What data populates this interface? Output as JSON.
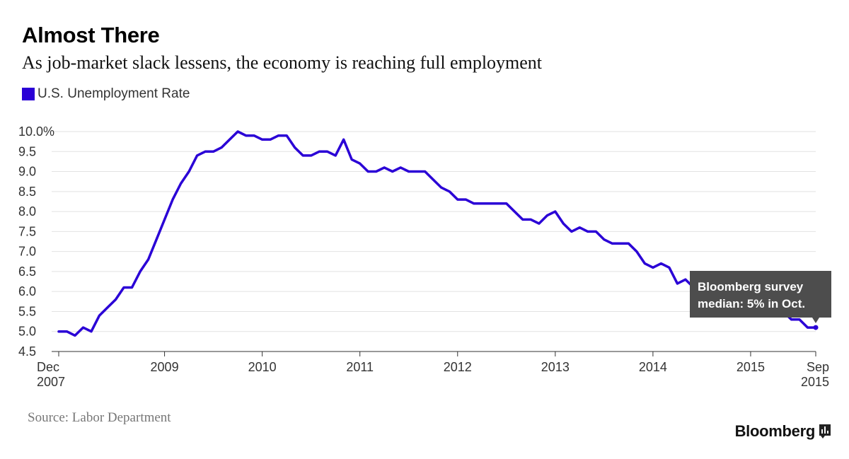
{
  "header": {
    "title": "Almost There",
    "subtitle": "As job-market slack lessens, the economy is reaching full employment"
  },
  "footer": {
    "source": "Source: Labor Department",
    "brand": "Bloomberg"
  },
  "colors": {
    "series": "#2a00d6",
    "annotation_bg": "#4d4d4d",
    "grid": "#e2e2e2"
  },
  "chart_data": {
    "type": "line",
    "grid": true,
    "legend_position": "top-left",
    "ylim": [
      4.5,
      10.0
    ],
    "yticks": [
      {
        "value": 10.0,
        "label": "10.0%"
      },
      {
        "value": 9.5,
        "label": "9.5"
      },
      {
        "value": 9.0,
        "label": "9.0"
      },
      {
        "value": 8.5,
        "label": "8.5"
      },
      {
        "value": 8.0,
        "label": "8.0"
      },
      {
        "value": 7.5,
        "label": "7.5"
      },
      {
        "value": 7.0,
        "label": "7.0"
      },
      {
        "value": 6.5,
        "label": "6.5"
      },
      {
        "value": 6.0,
        "label": "6.0"
      },
      {
        "value": 5.5,
        "label": "5.5"
      },
      {
        "value": 5.0,
        "label": "5.0"
      },
      {
        "value": 4.5,
        "label": "4.5"
      }
    ],
    "xlim": [
      "2007-12",
      "2015-09"
    ],
    "xticks": [
      {
        "date": "2007-12",
        "label": "Dec",
        "label2": "2007"
      },
      {
        "date": "2009-01",
        "label": "2009"
      },
      {
        "date": "2010-01",
        "label": "2010"
      },
      {
        "date": "2011-01",
        "label": "2011"
      },
      {
        "date": "2012-01",
        "label": "2012"
      },
      {
        "date": "2013-01",
        "label": "2013"
      },
      {
        "date": "2014-01",
        "label": "2014"
      },
      {
        "date": "2015-01",
        "label": "2015"
      },
      {
        "date": "2015-09",
        "label": "Sep",
        "label2": "2015"
      }
    ],
    "series": [
      {
        "name": "U.S. Unemployment Rate",
        "x": [
          "2007-12",
          "2008-01",
          "2008-02",
          "2008-03",
          "2008-04",
          "2008-05",
          "2008-06",
          "2008-07",
          "2008-08",
          "2008-09",
          "2008-10",
          "2008-11",
          "2008-12",
          "2009-01",
          "2009-02",
          "2009-03",
          "2009-04",
          "2009-05",
          "2009-06",
          "2009-07",
          "2009-08",
          "2009-09",
          "2009-10",
          "2009-11",
          "2009-12",
          "2010-01",
          "2010-02",
          "2010-03",
          "2010-04",
          "2010-05",
          "2010-06",
          "2010-07",
          "2010-08",
          "2010-09",
          "2010-10",
          "2010-11",
          "2010-12",
          "2011-01",
          "2011-02",
          "2011-03",
          "2011-04",
          "2011-05",
          "2011-06",
          "2011-07",
          "2011-08",
          "2011-09",
          "2011-10",
          "2011-11",
          "2011-12",
          "2012-01",
          "2012-02",
          "2012-03",
          "2012-04",
          "2012-05",
          "2012-06",
          "2012-07",
          "2012-08",
          "2012-09",
          "2012-10",
          "2012-11",
          "2012-12",
          "2013-01",
          "2013-02",
          "2013-03",
          "2013-04",
          "2013-05",
          "2013-06",
          "2013-07",
          "2013-08",
          "2013-09",
          "2013-10",
          "2013-11",
          "2013-12",
          "2014-01",
          "2014-02",
          "2014-03",
          "2014-04",
          "2014-05",
          "2014-06",
          "2014-07",
          "2014-08",
          "2014-09",
          "2014-10",
          "2014-11",
          "2014-12",
          "2015-01",
          "2015-02",
          "2015-03",
          "2015-04",
          "2015-05",
          "2015-06",
          "2015-07",
          "2015-08",
          "2015-09"
        ],
        "y": [
          5.0,
          5.0,
          4.9,
          5.1,
          5.0,
          5.4,
          5.6,
          5.8,
          6.1,
          6.1,
          6.5,
          6.8,
          7.3,
          7.8,
          8.3,
          8.7,
          9.0,
          9.4,
          9.5,
          9.5,
          9.6,
          9.8,
          10.0,
          9.9,
          9.9,
          9.8,
          9.8,
          9.9,
          9.9,
          9.6,
          9.4,
          9.4,
          9.5,
          9.5,
          9.4,
          9.8,
          9.3,
          9.2,
          9.0,
          9.0,
          9.1,
          9.0,
          9.1,
          9.0,
          9.0,
          9.0,
          8.8,
          8.6,
          8.5,
          8.3,
          8.3,
          8.2,
          8.2,
          8.2,
          8.2,
          8.2,
          8.0,
          7.8,
          7.8,
          7.7,
          7.9,
          8.0,
          7.7,
          7.5,
          7.6,
          7.5,
          7.5,
          7.3,
          7.2,
          7.2,
          7.2,
          7.0,
          6.7,
          6.6,
          6.7,
          6.6,
          6.2,
          6.3,
          6.1,
          6.2,
          6.1,
          5.9,
          5.7,
          5.8,
          5.6,
          5.7,
          5.5,
          5.5,
          5.4,
          5.5,
          5.3,
          5.3,
          5.1,
          5.1
        ]
      }
    ],
    "annotations": [
      {
        "lines": [
          "Bloomberg survey",
          "median: 5% in Oct."
        ],
        "date": "2015-09",
        "value": 5.1
      }
    ]
  }
}
